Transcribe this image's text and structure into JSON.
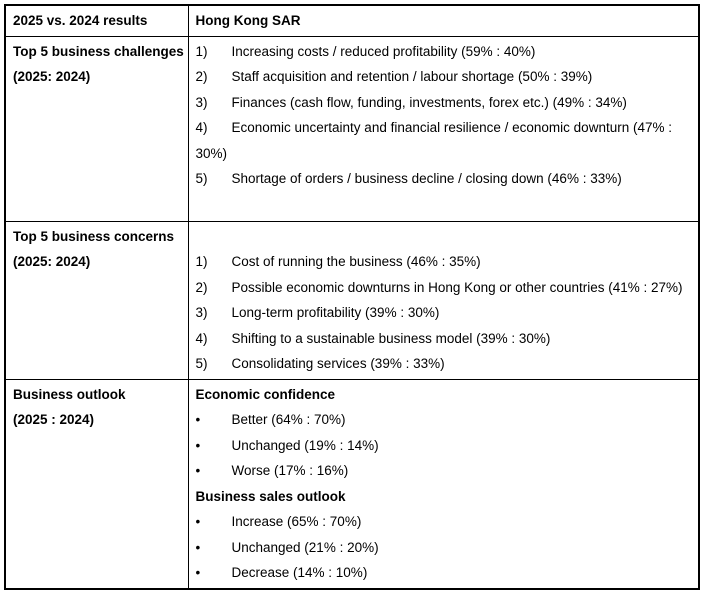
{
  "table": {
    "header": {
      "left": "2025 vs. 2024 results",
      "right": "Hong Kong SAR"
    },
    "rows": [
      {
        "label": "Top 5 business challenges",
        "period": "(2025: 2024)",
        "items": [
          {
            "marker": "1)",
            "text": "Increasing costs / reduced profitability (59% : 40%)"
          },
          {
            "marker": "2)",
            "text": "Staff acquisition and retention / labour shortage (50% : 39%)"
          },
          {
            "marker": "3)",
            "text": "Finances (cash flow, funding, investments, forex etc.) (49% : 34%)"
          },
          {
            "marker": "4)",
            "text": "Economic uncertainty and financial resilience / economic downturn (47% : 30%)"
          },
          {
            "marker": "5)",
            "text": "Shortage of orders / business decline / closing down (46% : 33%)"
          }
        ]
      },
      {
        "label": "Top 5 business concerns",
        "period": "(2025: 2024)",
        "items": [
          {
            "marker": "1)",
            "text": "Cost of running the business (46% : 35%)"
          },
          {
            "marker": "2)",
            "text": "Possible economic downturns in Hong Kong or other countries (41% : 27%)"
          },
          {
            "marker": "3)",
            "text": "Long-term profitability (39% : 30%)"
          },
          {
            "marker": "4)",
            "text": "Shifting to a sustainable business model (39% : 30%)"
          },
          {
            "marker": "5)",
            "text": "Consolidating services (39% : 33%)"
          }
        ]
      },
      {
        "label": "Business outlook",
        "period": "(2025 : 2024)",
        "sections": [
          {
            "heading": "Economic confidence",
            "items": [
              {
                "marker": "•",
                "text": "Better (64% : 70%)"
              },
              {
                "marker": "•",
                "text": "Unchanged (19% : 14%)"
              },
              {
                "marker": "•",
                "text": "Worse (17% : 16%)"
              }
            ]
          },
          {
            "heading": "Business sales outlook",
            "items": [
              {
                "marker": "•",
                "text": "Increase (65% : 70%)"
              },
              {
                "marker": "•",
                "text": "Unchanged (21% : 20%)"
              },
              {
                "marker": "•",
                "text": "Decrease (14% : 10%)"
              }
            ]
          }
        ]
      }
    ]
  }
}
